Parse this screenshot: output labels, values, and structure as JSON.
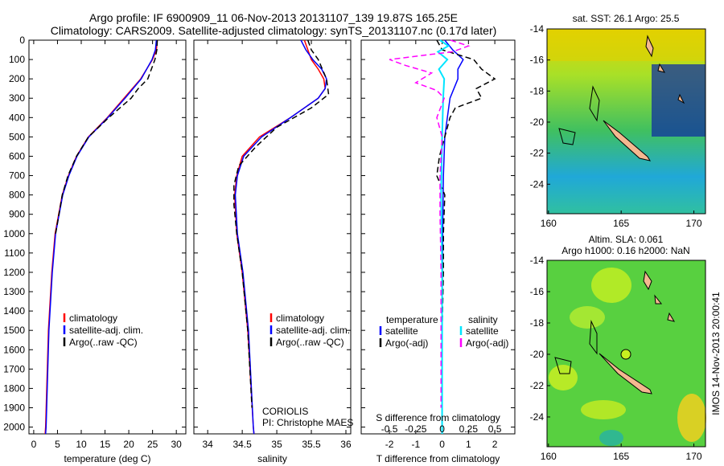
{
  "title_line1": "Argo profile: IF 6900909_11 06-Nov-2013 20131107_139 19.87S 165.25E",
  "title_line2": "Climatology: CARS2009. Satellite-adjusted climatology: synTS_20131107.nc (0.17d later)",
  "colors": {
    "clim": "#ff0000",
    "sat": "#0000ff",
    "argo": "#000000",
    "s_sat": "#00e5ff",
    "s_argo": "#ff00ff"
  },
  "chart_data": [
    {
      "type": "line",
      "xlabel": "temperature (deg C)",
      "ylim": [
        2035,
        0
      ],
      "xlim": [
        -1,
        32
      ],
      "xticks": [
        "0",
        "5",
        "10",
        "15",
        "20",
        "25",
        "30"
      ],
      "xtick_values": [
        0,
        5,
        10,
        15,
        20,
        25,
        30
      ],
      "yticks": [
        "0",
        "100",
        "200",
        "300",
        "400",
        "500",
        "600",
        "700",
        "800",
        "900",
        "1000",
        "1100",
        "1200",
        "1300",
        "1400",
        "1500",
        "1600",
        "1700",
        "1800",
        "1900",
        "2000"
      ],
      "legend": [
        "climatology",
        "satellite-adj. clim.",
        "Argo(..raw -QC)"
      ],
      "series": [
        {
          "name": "climatology",
          "color": "clim",
          "depth": [
            0,
            50,
            100,
            200,
            300,
            400,
            500,
            600,
            700,
            800,
            1000,
            1200,
            1500,
            2000,
            2035
          ],
          "values": [
            26,
            25.8,
            25,
            22.5,
            19,
            15.5,
            11.5,
            9,
            7.3,
            6,
            4.5,
            3.8,
            3.1,
            2.5,
            2.4
          ]
        },
        {
          "name": "satellite-adj. clim.",
          "color": "sat",
          "depth": [
            0,
            50,
            100,
            200,
            300,
            400,
            500,
            600,
            700,
            800,
            1000,
            1200,
            1500,
            2000,
            2035
          ],
          "values": [
            25.8,
            25.6,
            24.9,
            22.6,
            19.2,
            15.6,
            11.6,
            9.1,
            7.4,
            6.1,
            4.6,
            3.9,
            3.2,
            2.6,
            2.5
          ]
        },
        {
          "name": "Argo(..raw -QC)",
          "color": "argo",
          "dash": true,
          "depth": [
            0,
            50,
            100,
            200,
            250,
            300,
            400,
            500,
            600,
            700,
            800,
            1000
          ],
          "values": [
            26,
            25.9,
            25.5,
            24,
            22,
            20.5,
            15.8,
            11.5,
            9,
            7.2,
            6,
            4.6
          ]
        }
      ]
    },
    {
      "type": "line",
      "xlabel": "salinity",
      "ylim": [
        2035,
        0
      ],
      "xlim": [
        33.8,
        36.07
      ],
      "xticks": [
        "34",
        "34.5",
        "35",
        "35.5",
        "36"
      ],
      "xtick_values": [
        34,
        34.5,
        35,
        35.5,
        36
      ],
      "legend": [
        "climatology",
        "satellite-adj. clim.",
        "Argo(..raw -QC)"
      ],
      "annotation": [
        "CORIOLIS",
        "PI: Christophe MAES"
      ],
      "series": [
        {
          "name": "climatology",
          "color": "clim",
          "depth": [
            0,
            50,
            100,
            150,
            200,
            250,
            300,
            400,
            500,
            600,
            700,
            800,
            1000,
            1200,
            1500,
            2000,
            2035
          ],
          "values": [
            35.4,
            35.45,
            35.5,
            35.6,
            35.68,
            35.7,
            35.6,
            35.2,
            34.75,
            34.5,
            34.42,
            34.39,
            34.42,
            34.5,
            34.58,
            34.66,
            34.67
          ]
        },
        {
          "name": "satellite-adj. clim.",
          "color": "sat",
          "depth": [
            0,
            50,
            100,
            150,
            200,
            250,
            300,
            400,
            500,
            600,
            700,
            800,
            1000,
            1200,
            1500,
            2000,
            2035
          ],
          "values": [
            35.35,
            35.42,
            35.52,
            35.65,
            35.72,
            35.7,
            35.6,
            35.2,
            34.78,
            34.52,
            34.43,
            34.4,
            34.43,
            34.51,
            34.59,
            34.66,
            34.67
          ]
        },
        {
          "name": "Argo(..raw -QC)",
          "color": "argo",
          "dash": true,
          "depth": [
            0,
            50,
            100,
            200,
            280,
            350,
            450,
            550,
            650,
            750,
            850,
            1000,
            1200,
            1500,
            1900
          ],
          "values": [
            35.45,
            35.5,
            35.6,
            35.72,
            35.75,
            35.5,
            35.0,
            34.7,
            34.45,
            34.38,
            34.38,
            34.42,
            34.5,
            34.58,
            34.64
          ]
        }
      ]
    },
    {
      "type": "line",
      "xlabel": "T difference from climatology",
      "x2label": "S difference from climatology",
      "ylim": [
        2035,
        0
      ],
      "xlim": [
        -3.07,
        2.76
      ],
      "xticks": [
        "-2",
        "-1",
        "0",
        "1",
        "2"
      ],
      "xtick_values": [
        -2,
        -1,
        0,
        1,
        2
      ],
      "x2ticks": [
        "-0.5",
        "-0.25",
        "0",
        "0.25",
        "0.5"
      ],
      "x2tick_values": [
        -0.5,
        -0.25,
        0,
        0.25,
        0.5
      ],
      "legend_headers": [
        "temperature",
        "salinity"
      ],
      "legend": [
        "satellite",
        "Argo(-adj)",
        "satellite",
        "Argo(-adj)"
      ],
      "series": [
        {
          "name": "T satellite",
          "color": "sat",
          "depth": [
            0,
            50,
            100,
            150,
            200,
            300,
            400,
            500,
            700,
            1000,
            1500,
            2000,
            2035
          ],
          "values": [
            0.1,
            0.4,
            0.8,
            0.6,
            0.6,
            0.3,
            0.2,
            0.1,
            0.05,
            0.02,
            0,
            0,
            0
          ]
        },
        {
          "name": "T Argo(-adj)",
          "color": "argo",
          "dash": true,
          "depth": [
            0,
            50,
            100,
            150,
            200,
            250,
            300,
            350,
            400,
            500,
            600,
            700,
            800,
            1000,
            1200,
            1500,
            1900
          ],
          "values": [
            -0.2,
            0,
            1.2,
            1.5,
            2.0,
            1.3,
            1.5,
            0.5,
            0.3,
            0.1,
            -0.1,
            -0.2,
            0.1,
            0.05,
            0.05,
            0,
            0
          ]
        },
        {
          "name": "S satellite",
          "color": "s_sat",
          "width": 2,
          "depth": [
            0,
            30,
            60,
            100,
            150,
            200,
            300,
            500,
            800,
            1200,
            2000,
            2035
          ],
          "values": [
            -0.02,
            0.06,
            -0.04,
            0.05,
            -0.03,
            0.02,
            0.01,
            0,
            -0.01,
            0,
            0,
            0
          ]
        },
        {
          "name": "S Argo(-adj)",
          "color": "s_argo",
          "dash": true,
          "depth": [
            0,
            30,
            60,
            100,
            130,
            170,
            220,
            260,
            300,
            400,
            500,
            700,
            900,
            1200,
            1500,
            1900
          ],
          "values": [
            0.08,
            0.25,
            0.1,
            -0.5,
            -0.35,
            -0.1,
            -0.25,
            -0.05,
            0.02,
            -0.05,
            0,
            -0.02,
            -0.02,
            -0.01,
            -0.01,
            -0.01
          ]
        }
      ]
    },
    {
      "type": "heatmap",
      "title": "sat. SST: 26.1 Argo: 25.5",
      "xticks": [
        "160",
        "165",
        "170"
      ],
      "yticks": [
        "-14",
        "-16",
        "-18",
        "-20",
        "-22",
        "-24"
      ]
    },
    {
      "type": "heatmap",
      "title_line1": "Altim. SLA: 0.061",
      "title_line2": "Argo h1000: 0.16 h2000: NaN",
      "xticks": [
        "160",
        "165",
        "170"
      ],
      "yticks": [
        "-14",
        "-16",
        "-18",
        "-20",
        "-22",
        "-24"
      ]
    }
  ],
  "side_label": "IMOS 14-Nov-2013 20:00:41"
}
